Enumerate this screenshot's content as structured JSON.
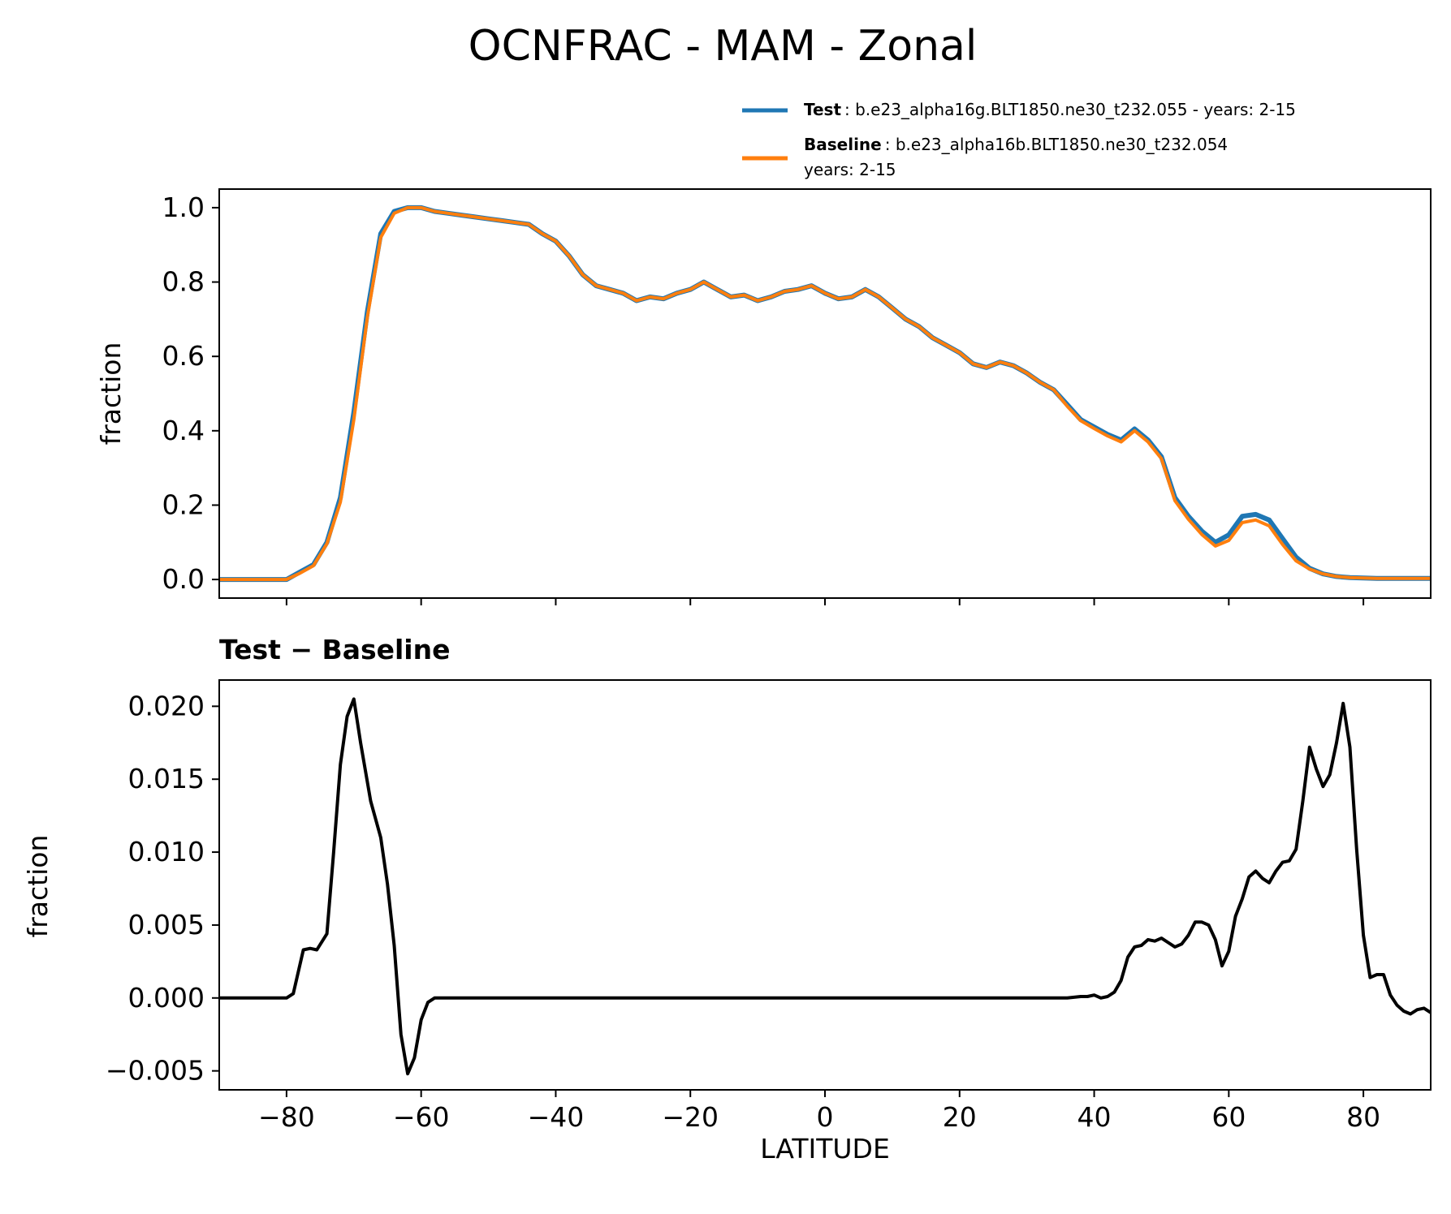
{
  "chart_data": [
    {
      "type": "line",
      "title": "OCNFRAC - MAM - Zonal",
      "xlabel": "",
      "ylabel": "fraction",
      "xlim": [
        -90,
        90
      ],
      "ylim": [
        -0.05,
        1.05
      ],
      "xticks": [
        -80,
        -60,
        -40,
        -20,
        0,
        20,
        40,
        60,
        80
      ],
      "yticks": [
        0.0,
        0.2,
        0.4,
        0.6,
        0.8,
        1.0
      ],
      "ytick_labels": [
        "0.0",
        "0.2",
        "0.4",
        "0.6",
        "0.8",
        "1.0"
      ],
      "grid": false,
      "legend_position": "above-right",
      "x": [
        -90,
        -85,
        -80,
        -78,
        -76,
        -74,
        -72,
        -70,
        -68,
        -66,
        -64,
        -62,
        -60,
        -58,
        -56,
        -54,
        -52,
        -50,
        -48,
        -46,
        -44,
        -42,
        -40,
        -38,
        -36,
        -34,
        -32,
        -30,
        -28,
        -26,
        -24,
        -22,
        -20,
        -18,
        -16,
        -14,
        -12,
        -10,
        -8,
        -6,
        -4,
        -2,
        0,
        2,
        4,
        6,
        8,
        10,
        12,
        14,
        16,
        18,
        20,
        22,
        24,
        26,
        28,
        30,
        32,
        34,
        36,
        38,
        40,
        42,
        44,
        46,
        48,
        50,
        52,
        54,
        56,
        58,
        60,
        62,
        64,
        66,
        68,
        70,
        72,
        74,
        76,
        78,
        80,
        82,
        84,
        86,
        90
      ],
      "series": [
        {
          "name": "Test",
          "label_text": ": b.e23_alpha16g.BLT1850.ne30_t232.055 - years: 2-15",
          "color": "#1f77b4",
          "values": [
            0.0,
            0.0,
            0.0,
            0.02,
            0.04,
            0.1,
            0.22,
            0.45,
            0.72,
            0.93,
            0.99,
            1.0,
            1.0,
            0.99,
            0.985,
            0.98,
            0.975,
            0.97,
            0.965,
            0.96,
            0.955,
            0.93,
            0.91,
            0.87,
            0.82,
            0.79,
            0.78,
            0.77,
            0.75,
            0.76,
            0.755,
            0.77,
            0.78,
            0.8,
            0.78,
            0.76,
            0.765,
            0.75,
            0.76,
            0.775,
            0.78,
            0.79,
            0.77,
            0.755,
            0.76,
            0.78,
            0.76,
            0.73,
            0.7,
            0.68,
            0.65,
            0.63,
            0.61,
            0.58,
            0.57,
            0.585,
            0.575,
            0.555,
            0.53,
            0.51,
            0.47,
            0.43,
            0.41,
            0.39,
            0.375,
            0.405,
            0.375,
            0.33,
            0.22,
            0.17,
            0.13,
            0.1,
            0.12,
            0.17,
            0.175,
            0.16,
            0.11,
            0.06,
            0.03,
            0.015,
            0.008,
            0.005,
            0.004,
            0.003,
            0.003,
            0.003,
            0.003
          ]
        },
        {
          "name": "Baseline",
          "label_text": ": b.e23_alpha16b.BLT1850.ne30_t232.054",
          "label_text2": "years: 2-15",
          "color": "#ff7f0e",
          "values": [
            0.0,
            0.0,
            0.0,
            0.017,
            0.037,
            0.096,
            0.208,
            0.43,
            0.705,
            0.92,
            0.985,
            1.0,
            1.0,
            0.99,
            0.985,
            0.98,
            0.975,
            0.97,
            0.965,
            0.96,
            0.955,
            0.93,
            0.91,
            0.87,
            0.82,
            0.79,
            0.78,
            0.77,
            0.75,
            0.76,
            0.755,
            0.77,
            0.78,
            0.8,
            0.78,
            0.76,
            0.765,
            0.75,
            0.76,
            0.775,
            0.78,
            0.79,
            0.77,
            0.755,
            0.76,
            0.78,
            0.76,
            0.73,
            0.7,
            0.68,
            0.65,
            0.63,
            0.61,
            0.58,
            0.57,
            0.585,
            0.575,
            0.555,
            0.53,
            0.51,
            0.466,
            0.427,
            0.406,
            0.386,
            0.37,
            0.4,
            0.37,
            0.325,
            0.212,
            0.162,
            0.121,
            0.09,
            0.105,
            0.153,
            0.16,
            0.144,
            0.094,
            0.05,
            0.028,
            0.015,
            0.008,
            0.005,
            0.004,
            0.003,
            0.003,
            0.003,
            0.003
          ]
        }
      ]
    },
    {
      "type": "line",
      "title": "Test − Baseline",
      "xlabel": "LATITUDE",
      "ylabel": "fraction",
      "xlim": [
        -90,
        90
      ],
      "ylim": [
        -0.0063,
        0.0218
      ],
      "xticks": [
        -80,
        -60,
        -40,
        -20,
        0,
        20,
        40,
        60,
        80
      ],
      "xtick_labels": [
        "−80",
        "−60",
        "−40",
        "−20",
        "0",
        "20",
        "40",
        "60",
        "80"
      ],
      "yticks": [
        -0.005,
        0.0,
        0.005,
        0.01,
        0.015,
        0.02
      ],
      "ytick_labels": [
        "−0.005",
        "0.000",
        "0.005",
        "0.010",
        "0.015",
        "0.020"
      ],
      "grid": false,
      "series": [
        {
          "color": "#000000",
          "x": [
            -90,
            -80,
            -79,
            -77.5,
            -76.5,
            -75.5,
            -74,
            -73,
            -72,
            -71,
            -70,
            -69,
            -67.5,
            -66,
            -65,
            -64,
            -63,
            -62,
            -61,
            -60,
            -59,
            -58,
            -50,
            -40,
            -30,
            -20,
            -10,
            0,
            10,
            20,
            30,
            36,
            38,
            39,
            40,
            41,
            42,
            43,
            44,
            45,
            46,
            47,
            48,
            49,
            50,
            51,
            52,
            53,
            54,
            55,
            56,
            57,
            58,
            59,
            60,
            61,
            62,
            63,
            64,
            65,
            66,
            67,
            68,
            69,
            70,
            71,
            72,
            73,
            74,
            75,
            76,
            77,
            78,
            79,
            80,
            81,
            82,
            83,
            84,
            85,
            86,
            87,
            88,
            89,
            90
          ],
          "values": [
            0.0,
            0.0,
            0.0003,
            0.0033,
            0.0034,
            0.0033,
            0.0044,
            0.01,
            0.016,
            0.0193,
            0.0205,
            0.0175,
            0.0135,
            0.011,
            0.0078,
            0.0036,
            -0.0025,
            -0.0052,
            -0.0041,
            -0.0015,
            -0.0003,
            0.0,
            0.0,
            0.0,
            0.0,
            0.0,
            0.0,
            0.0,
            0.0,
            0.0,
            0.0,
            0.0,
            0.0001,
            0.0001,
            0.0002,
            0.0,
            0.0001,
            0.0004,
            0.0012,
            0.0028,
            0.0035,
            0.0036,
            0.004,
            0.0039,
            0.0041,
            0.0038,
            0.0035,
            0.0037,
            0.0043,
            0.0052,
            0.0052,
            0.005,
            0.004,
            0.0022,
            0.0032,
            0.0056,
            0.0068,
            0.0083,
            0.0087,
            0.0082,
            0.0079,
            0.0087,
            0.0093,
            0.0094,
            0.0102,
            0.0135,
            0.0172,
            0.0157,
            0.0145,
            0.0153,
            0.0175,
            0.0202,
            0.0172,
            0.0102,
            0.0043,
            0.0014,
            0.0016,
            0.0016,
            0.0002,
            -0.0005,
            -0.0009,
            -0.0011,
            -0.0008,
            -0.0007,
            -0.001
          ]
        }
      ]
    }
  ]
}
